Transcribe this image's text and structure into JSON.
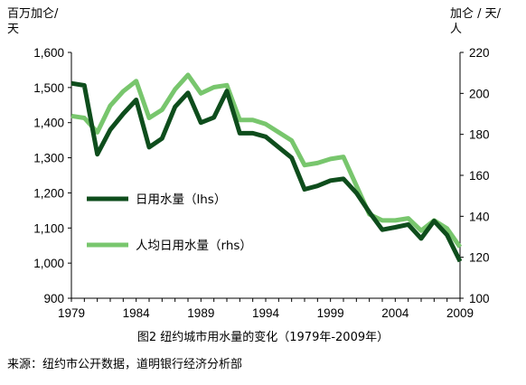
{
  "chart_data": {
    "type": "line",
    "left_unit": [
      "百万加仑/",
      "天"
    ],
    "right_unit": [
      "加仑 / 天/",
      "人"
    ],
    "x": [
      1979,
      1980,
      1981,
      1982,
      1983,
      1984,
      1985,
      1986,
      1987,
      1988,
      1989,
      1990,
      1991,
      1992,
      1993,
      1994,
      1995,
      1996,
      1997,
      1998,
      1999,
      2000,
      2001,
      2002,
      2003,
      2004,
      2005,
      2006,
      2007,
      2008,
      2009
    ],
    "x_ticks": [
      "1979",
      "1984",
      "1989",
      "1994",
      "1999",
      "2004",
      "2009"
    ],
    "xlim": [
      1979,
      2009
    ],
    "y_left_ticks": [
      "900",
      "1,000",
      "1,100",
      "1,200",
      "1,300",
      "1,400",
      "1,500",
      "1,600"
    ],
    "ylim_left": [
      900,
      1600
    ],
    "y_right_ticks": [
      "100",
      "120",
      "140",
      "160",
      "180",
      "200",
      "220"
    ],
    "ylim_right": [
      100,
      220
    ],
    "series": [
      {
        "name": "日用水量（lhs）",
        "axis": "left",
        "color": "#0e4d1c",
        "values": [
          1512,
          1506,
          1310,
          1380,
          1425,
          1465,
          1330,
          1355,
          1445,
          1485,
          1400,
          1415,
          1490,
          1370,
          1370,
          1360,
          1330,
          1300,
          1210,
          1220,
          1235,
          1240,
          1200,
          1145,
          1095,
          1102,
          1110,
          1070,
          1120,
          1080,
          1005
        ]
      },
      {
        "name": "人均日用水量（rhs）",
        "axis": "right",
        "color": "#78c66d",
        "values": [
          189,
          188,
          181,
          194,
          201,
          206,
          188,
          192,
          202,
          209,
          200,
          203,
          204,
          187,
          187,
          185,
          181,
          177,
          165,
          166,
          168,
          169,
          155,
          141,
          138,
          138,
          139,
          133,
          138,
          134,
          125
        ]
      }
    ]
  },
  "caption": "图2 纽约城市用水量的变化（1979年-2009年）",
  "source": "来源：纽约市公开数据，道明银行经济分析部"
}
